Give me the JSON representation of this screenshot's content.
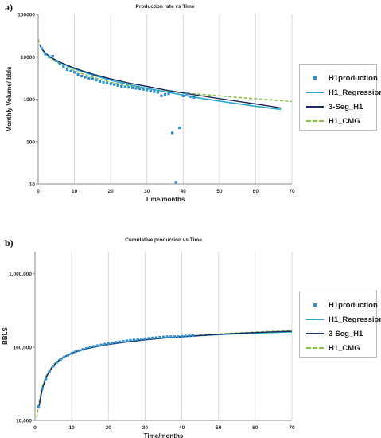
{
  "charts": [
    {
      "panel_label": "a)",
      "title": "Production rate vs Time",
      "xlabel": "Time/months",
      "ylabel": "Monthly Volume/ bbls",
      "y_ticks": [
        "10",
        "100",
        "1000",
        "10000",
        "100000"
      ],
      "x_ticks": [
        "0",
        "10",
        "20",
        "30",
        "40",
        "50",
        "60",
        "70"
      ],
      "legend": [
        "H1production",
        "H1_Regression",
        "3-Seg_H1",
        "H1_CMG"
      ]
    },
    {
      "panel_label": "b)",
      "title": "Cumulative production vs Time",
      "xlabel": "Time/months",
      "ylabel": "BBLS",
      "y_ticks": [
        "10,000",
        "100,000",
        "1,000,000"
      ],
      "x_ticks": [
        "0",
        "10",
        "20",
        "30",
        "40",
        "50",
        "60",
        "70"
      ],
      "legend": [
        "H1production",
        "H1_Regression",
        "3-Seg_H1",
        "H1_CMG"
      ]
    }
  ],
  "colors": {
    "H1production": "#2e8fd6",
    "H1_Regression": "#2aa7cc",
    "3-Seg_H1": "#1c2a5c",
    "H1_CMG": "#8bc34a"
  },
  "chart_data": [
    {
      "type": "line",
      "title": "Production rate vs Time",
      "xlabel": "Time/months",
      "ylabel": "Monthly Volume/ bbls",
      "xlim": [
        0,
        70
      ],
      "ylim": [
        10,
        100000
      ],
      "y_scale": "log",
      "grid": "vertical",
      "legend_position": "right",
      "series": [
        {
          "name": "H1production",
          "style": "markers",
          "x": [
            1,
            2,
            3,
            4,
            5,
            6,
            7,
            8,
            9,
            10,
            11,
            12,
            13,
            14,
            15,
            16,
            17,
            18,
            19,
            20,
            21,
            22,
            23,
            24,
            25,
            26,
            27,
            28,
            29,
            30,
            31,
            32,
            33,
            34,
            35,
            36,
            37,
            38,
            39,
            40,
            41,
            42,
            43
          ],
          "y": [
            15500,
            11500,
            10000,
            10300,
            8000,
            6800,
            5800,
            5000,
            4600,
            4300,
            3800,
            3500,
            3300,
            3100,
            3000,
            2800,
            2600,
            2500,
            2400,
            2300,
            2200,
            2100,
            2000,
            1950,
            1900,
            1850,
            1800,
            1750,
            1700,
            1650,
            1550,
            1500,
            1450,
            1200,
            1300,
            1350,
            160,
            11,
            210,
            1200,
            1350,
            1150,
            1100
          ]
        },
        {
          "name": "H1_Regression",
          "style": "line",
          "x": [
            0.5,
            1,
            2,
            3,
            4,
            5,
            6,
            8,
            10,
            12,
            15,
            20,
            25,
            30,
            35,
            40,
            45,
            50,
            55,
            60,
            65,
            67
          ],
          "y": [
            19000,
            15500,
            12300,
            10500,
            9200,
            8200,
            7400,
            6100,
            5200,
            4500,
            3700,
            2800,
            2200,
            1800,
            1500,
            1250,
            1050,
            900,
            780,
            680,
            600,
            575
          ]
        },
        {
          "name": "3-Seg_H1",
          "style": "line",
          "x": [
            0.5,
            1,
            2,
            3,
            4,
            5,
            6,
            8,
            10,
            12,
            15,
            20,
            25,
            30,
            35,
            40,
            45,
            50,
            55,
            60,
            65,
            67
          ],
          "y": [
            18500,
            15000,
            12000,
            10300,
            9100,
            8200,
            7500,
            6300,
            5400,
            4700,
            3900,
            3000,
            2400,
            2000,
            1650,
            1400,
            1200,
            1030,
            890,
            770,
            660,
            620
          ]
        },
        {
          "name": "H1_CMG",
          "style": "dashed",
          "x": [
            0,
            0.5,
            1,
            2,
            3,
            4,
            5,
            6,
            8,
            10,
            12,
            15,
            20,
            25,
            30,
            35,
            40,
            45,
            50,
            55,
            60,
            65,
            70
          ],
          "y": [
            26000,
            20000,
            16000,
            11800,
            9800,
            8500,
            7500,
            6800,
            5600,
            4700,
            4000,
            3300,
            2500,
            2050,
            1750,
            1550,
            1400,
            1300,
            1200,
            1100,
            1020,
            950,
            880
          ]
        }
      ]
    },
    {
      "type": "line",
      "title": "Cumulative production vs Time",
      "xlabel": "Time/months",
      "ylabel": "BBLS",
      "xlim": [
        0,
        70
      ],
      "ylim": [
        10000,
        2000000
      ],
      "y_scale": "log",
      "grid": "vertical",
      "legend_position": "right",
      "series": [
        {
          "name": "H1production",
          "style": "markers",
          "x": [
            1,
            2,
            3,
            4,
            5,
            6,
            7,
            8,
            9,
            10,
            11,
            12,
            13,
            14,
            15,
            16,
            17,
            18,
            19,
            20,
            21,
            22,
            23,
            24,
            25,
            26,
            27,
            28,
            29,
            30,
            31,
            32,
            33,
            34,
            35,
            36,
            37,
            38,
            39,
            40,
            41,
            42,
            43
          ],
          "y": [
            15500,
            27000,
            37000,
            47000,
            55000,
            62000,
            68000,
            73000,
            77500,
            82000,
            86000,
            89500,
            93000,
            96000,
            99000,
            102000,
            104500,
            107000,
            109500,
            112000,
            114000,
            116000,
            118000,
            120000,
            122000,
            124000,
            125500,
            127000,
            128500,
            130000,
            131500,
            133000,
            134500,
            135800,
            137000,
            138300,
            138500,
            138500,
            138700,
            140000,
            141300,
            142500,
            143500
          ]
        },
        {
          "name": "H1_Regression",
          "style": "line",
          "x": [
            1,
            2,
            3,
            4,
            5,
            6,
            8,
            10,
            12,
            15,
            20,
            25,
            30,
            35,
            40,
            45,
            50,
            55,
            60,
            65,
            70
          ],
          "y": [
            15000,
            27500,
            38500,
            48000,
            56000,
            63000,
            74000,
            82500,
            89500,
            98000,
            109000,
            118000,
            126000,
            132500,
            138000,
            143000,
            147500,
            151500,
            155000,
            158000,
            161000
          ]
        },
        {
          "name": "3-Seg_H1",
          "style": "line",
          "x": [
            1,
            2,
            3,
            4,
            5,
            6,
            8,
            10,
            12,
            15,
            20,
            25,
            30,
            35,
            40,
            45,
            50,
            55,
            60,
            65,
            70
          ],
          "y": [
            14800,
            27000,
            38000,
            47500,
            55500,
            62500,
            73500,
            82000,
            89000,
            97500,
            108500,
            117500,
            125500,
            132500,
            138500,
            144000,
            149000,
            153500,
            157500,
            161000,
            164000
          ]
        },
        {
          "name": "H1_CMG",
          "style": "dashed",
          "x": [
            0.5,
            1,
            2,
            3,
            4,
            5,
            6,
            8,
            10,
            12,
            15,
            20,
            25,
            30,
            35,
            40,
            45,
            50,
            55,
            60,
            65,
            70
          ],
          "y": [
            11000,
            17000,
            29500,
            40000,
            49500,
            57500,
            64500,
            75500,
            84000,
            91000,
            99500,
            110500,
            119500,
            127500,
            134000,
            140000,
            145500,
            150500,
            155500,
            160000,
            164500,
            168500
          ]
        }
      ]
    }
  ]
}
